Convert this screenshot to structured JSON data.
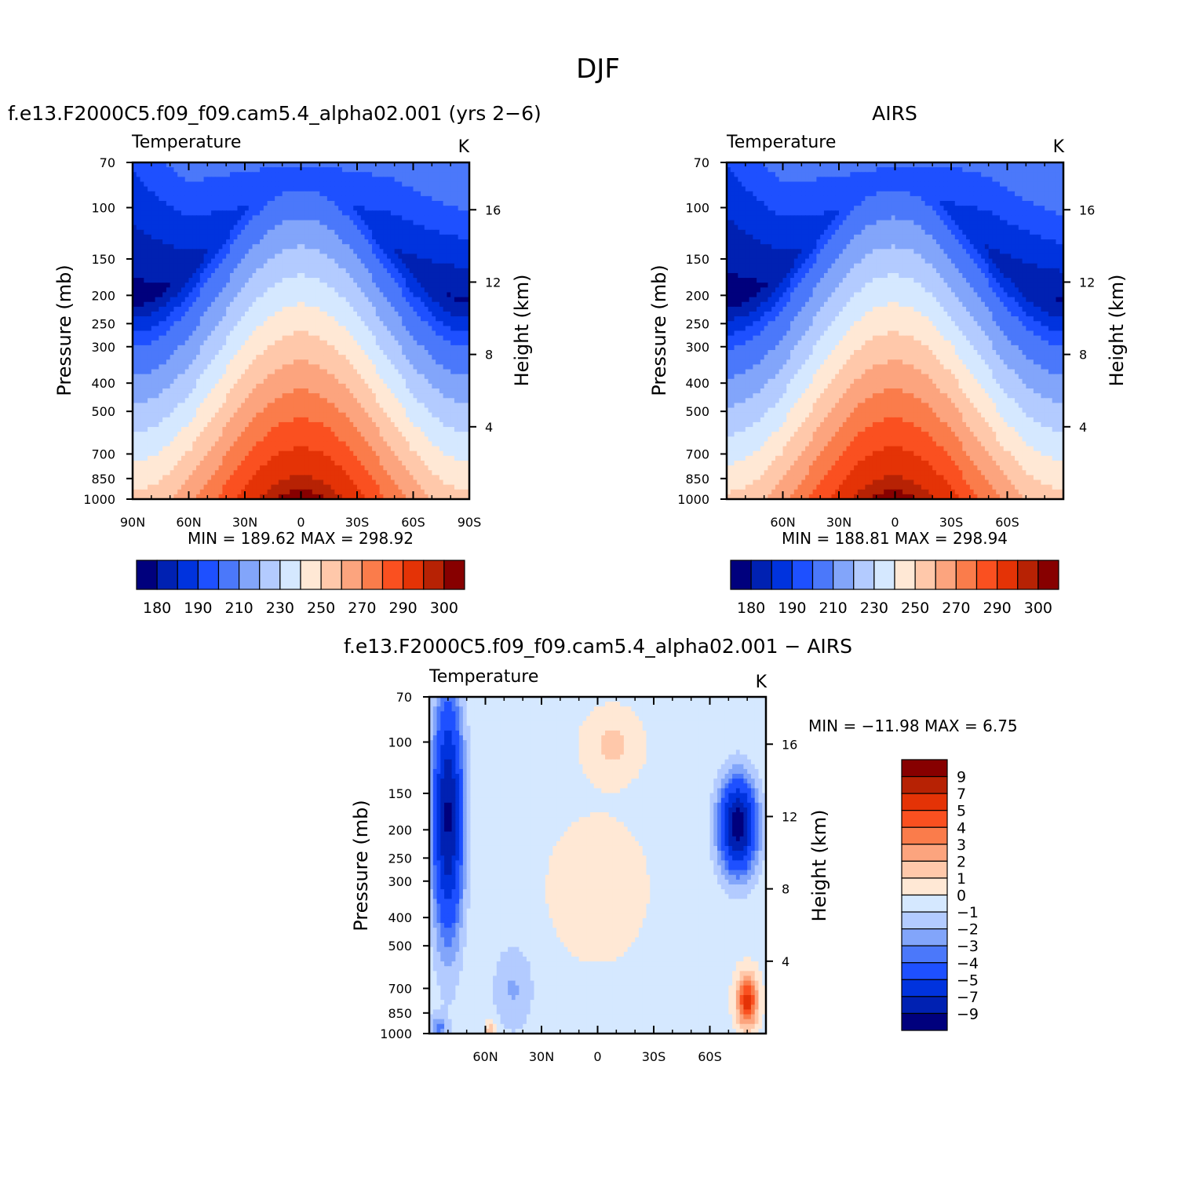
{
  "figure": {
    "title": "DJF"
  },
  "colors": {
    "abs": [
      "#00007d",
      "#0021b2",
      "#0033de",
      "#1e50ff",
      "#4b78fa",
      "#82a5fa",
      "#b3cbff",
      "#d5e8ff",
      "#ffe8d5",
      "#ffc8aa",
      "#fca47e",
      "#fa7c4b",
      "#fa5020",
      "#e43306",
      "#b72204",
      "#870000"
    ],
    "diff": [
      "#00007d",
      "#0021b2",
      "#0033de",
      "#1e50ff",
      "#4b78fa",
      "#82a5fa",
      "#b3cbff",
      "#d5e8ff",
      "#ffe8d5",
      "#ffc8aa",
      "#fca47e",
      "#fa7c4b",
      "#fa5020",
      "#e43306",
      "#b72204",
      "#870000"
    ]
  },
  "chart_data": [
    {
      "type": "heatmap",
      "title": "f.e13.F2000C5.f09_f09.cam5.4_alpha02.001 (yrs 2−6)",
      "subtitle_left": "Temperature",
      "subtitle_right": "K",
      "ylabel": "Pressure (mb)",
      "ylabel_right": "Height (km)",
      "pressure_ticks": [
        "70",
        "100",
        "150",
        "200",
        "250",
        "300",
        "400",
        "500",
        "700",
        "850",
        "1000"
      ],
      "height_ticks": [
        "16",
        "12",
        "8",
        "4"
      ],
      "lat_ticks": [
        "90N",
        "60N",
        "30N",
        "0",
        "30S",
        "60S",
        "90S"
      ],
      "stats": {
        "min_label": "MIN",
        "min": "189.62",
        "max_label": "MAX",
        "max": "298.92"
      },
      "colorbar_labels": [
        "180",
        "190",
        "210",
        "230",
        "250",
        "270",
        "290",
        "300"
      ],
      "levels": [
        175,
        180,
        185,
        190,
        200,
        210,
        220,
        230,
        240,
        250,
        260,
        270,
        280,
        290,
        295,
        300
      ]
    },
    {
      "type": "heatmap",
      "title": "AIRS",
      "subtitle_left": "Temperature",
      "subtitle_right": "K",
      "ylabel": "Pressure (mb)",
      "ylabel_right": "Height (km)",
      "pressure_ticks": [
        "70",
        "100",
        "150",
        "200",
        "250",
        "300",
        "400",
        "500",
        "700",
        "850",
        "1000"
      ],
      "height_ticks": [
        "16",
        "12",
        "8",
        "4"
      ],
      "lat_ticks": [
        "60N",
        "30N",
        "0",
        "30S",
        "60S"
      ],
      "stats": {
        "min_label": "MIN",
        "min": "188.81",
        "max_label": "MAX",
        "max": "298.94"
      },
      "colorbar_labels": [
        "180",
        "190",
        "210",
        "230",
        "250",
        "270",
        "290",
        "300"
      ],
      "levels": [
        175,
        180,
        185,
        190,
        200,
        210,
        220,
        230,
        240,
        250,
        260,
        270,
        280,
        290,
        295,
        300
      ]
    },
    {
      "type": "heatmap",
      "title": "f.e13.F2000C5.f09_f09.cam5.4_alpha02.001 − AIRS",
      "subtitle_left": "Temperature",
      "subtitle_right": "K",
      "ylabel": "Pressure (mb)",
      "ylabel_right": "Height (km)",
      "pressure_ticks": [
        "70",
        "100",
        "150",
        "200",
        "250",
        "300",
        "400",
        "500",
        "700",
        "850",
        "1000"
      ],
      "height_ticks": [
        "16",
        "12",
        "8",
        "4"
      ],
      "lat_ticks": [
        "60N",
        "30N",
        "0",
        "30S",
        "60S"
      ],
      "stats": {
        "min_label": "MIN",
        "min": "−11.98",
        "max_label": "MAX",
        "max": "6.75"
      },
      "colorbar_labels": [
        "9",
        "7",
        "5",
        "4",
        "3",
        "2",
        "1",
        "0",
        "−1",
        "−2",
        "−3",
        "−4",
        "−5",
        "−7",
        "−9"
      ],
      "levels": [
        -11,
        -9,
        -7,
        -5,
        -4,
        -3,
        -2,
        -1,
        0,
        1,
        2,
        3,
        4,
        5,
        7,
        9
      ]
    }
  ]
}
